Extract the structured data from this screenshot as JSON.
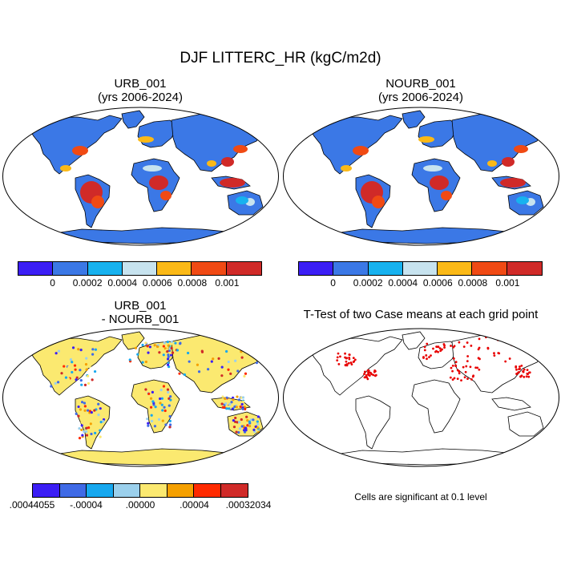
{
  "figure": {
    "title": "DJF LITTERC_HR (kgC/m2d)"
  },
  "panels": {
    "urb": {
      "title_line1": "URB_001",
      "title_line2": "(yrs 2006-2024)"
    },
    "nourb": {
      "title_line1": "NOURB_001",
      "title_line2": "(yrs 2006-2024)"
    },
    "diff": {
      "title_line1": "URB_001",
      "title_line2": "- NOURB_001"
    },
    "ttest": {
      "title": "T-Test of two Case means at each grid point",
      "note": "Cells are significant at 0.1 level"
    }
  },
  "colorbars": {
    "absolute": {
      "colors": [
        "#3b1ef5",
        "#3b78e6",
        "#17b2ef",
        "#c7e3ef",
        "#fbb917",
        "#f04a14",
        "#d02a28"
      ],
      "tick_labels": [
        "0",
        "0.0002",
        "0.0004",
        "0.0006",
        "0.0008",
        "0.001"
      ]
    },
    "difference": {
      "colors": [
        "#3b1ef5",
        "#3f6ae6",
        "#17a8ef",
        "#9bd0ec",
        "#fbe970",
        "#f5a000",
        "#ff2a00",
        "#d02a28"
      ],
      "tick_labels": [
        ".00044055",
        "-.00004",
        ".00000",
        ".00004",
        ".00032034"
      ]
    }
  },
  "colors": {
    "land_blue": "#3b78e6",
    "warm_red": "#d83a20",
    "diff_yellow": "#fbe970",
    "signif_red": "#e80000"
  }
}
